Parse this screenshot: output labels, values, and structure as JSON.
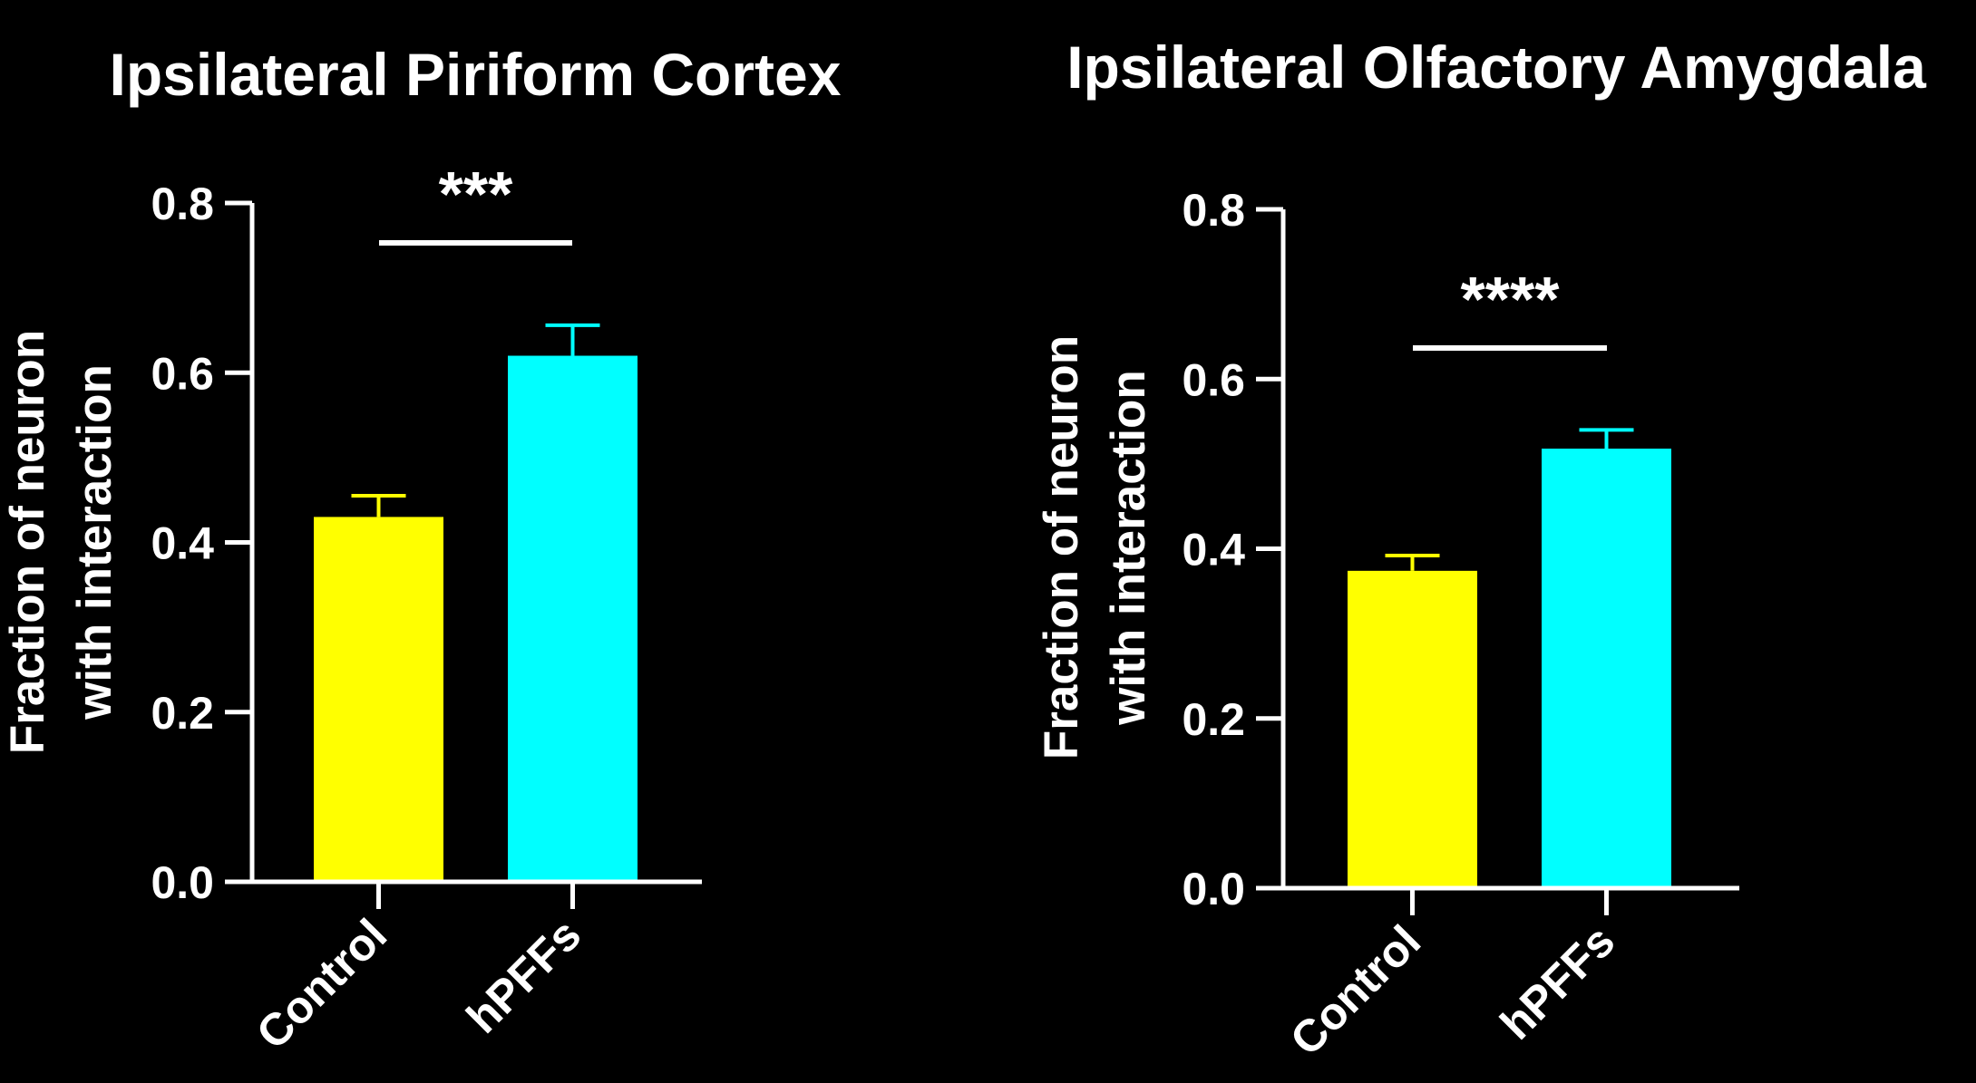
{
  "chart_data": [
    {
      "type": "bar",
      "title": "Ipsilateral Piriform Cortex",
      "ylabel": "Fraction of neuron with interaction",
      "ylabel_lines": [
        "Fraction of neuron",
        "with interaction"
      ],
      "categories": [
        "Control",
        "hPFFs"
      ],
      "values": [
        0.43,
        0.62
      ],
      "error_upper": [
        0.455,
        0.656
      ],
      "colors": [
        "#ffff00",
        "#00ffff"
      ],
      "ylim": [
        0,
        0.8
      ],
      "yticks": [
        "0.0",
        "0.2",
        "0.4",
        "0.6",
        "0.8"
      ],
      "significance": "***",
      "grid": false
    },
    {
      "type": "bar",
      "title": "Ipsilateral Olfactory Amygdala",
      "ylabel": "Fraction of neuron with interaction",
      "ylabel_lines": [
        "Fraction of neuron",
        "with interaction"
      ],
      "categories": [
        "Control",
        "hPFFs"
      ],
      "values": [
        0.374,
        0.518
      ],
      "error_upper": [
        0.392,
        0.54
      ],
      "colors": [
        "#ffff00",
        "#00ffff"
      ],
      "ylim": [
        0,
        0.8
      ],
      "yticks": [
        "0.0",
        "0.2",
        "0.4",
        "0.6",
        "0.8"
      ],
      "significance": "****",
      "grid": false
    }
  ]
}
